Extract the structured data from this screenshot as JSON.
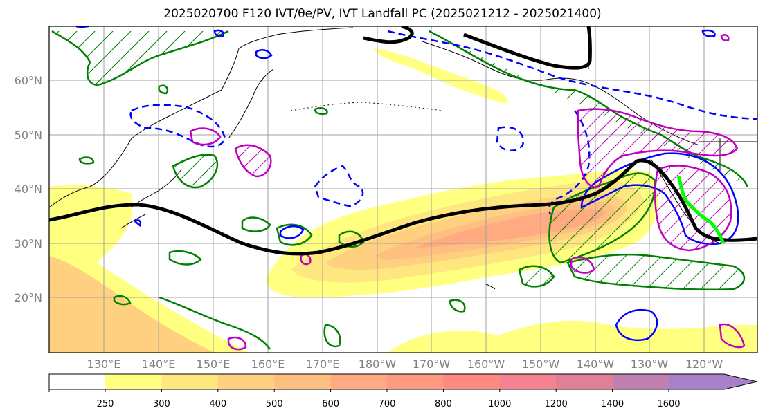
{
  "title": "2025020700 F120 IVT/θe/PV, IVT Landfall PC (2025021212 - 2025021400)",
  "lat_labels": [
    "60°N",
    "50°N",
    "40°N",
    "30°N",
    "20°N"
  ],
  "lon_labels": [
    "130°E",
    "140°E",
    "150°E",
    "160°E",
    "170°E",
    "180°W",
    "170°W",
    "160°W",
    "150°W",
    "140°W",
    "130°W",
    "120°W"
  ],
  "colorbar": {
    "ticks": [
      "250",
      "300",
      "400",
      "500",
      "600",
      "700",
      "800",
      "1000",
      "1200",
      "1400",
      "1600"
    ],
    "colors": [
      "#ffff80",
      "#ffe780",
      "#ffd080",
      "#ffbf80",
      "#ffaa80",
      "#ff9a80",
      "#ff8a80",
      "#f58290",
      "#e08098",
      "#c080b0",
      "#a880c8"
    ]
  },
  "colors": {
    "jet_line": "#000000",
    "theta_contour": "#008000",
    "pv_solid": "#0000ff",
    "pv_dashed": "#0000ff",
    "magenta_contour": "#c000c0",
    "landfall_path": "#00ff00",
    "grid": "#a0a0a0"
  }
}
